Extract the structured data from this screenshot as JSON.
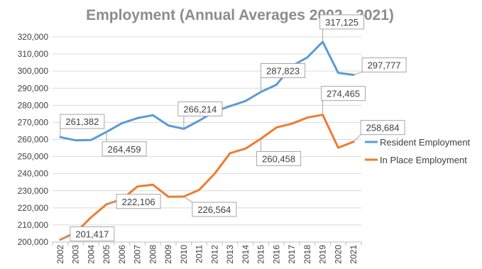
{
  "chart_data": {
    "type": "line",
    "title": "Employment (Annual Averages 2002 - 2021)",
    "x": [
      "2002",
      "2003",
      "2004",
      "2005",
      "2006",
      "2007",
      "2008",
      "2009",
      "2010",
      "2011",
      "2012",
      "2013",
      "2014",
      "2015",
      "2016",
      "2017",
      "2018",
      "2019",
      "2020",
      "2021"
    ],
    "ylim": [
      200000,
      320000
    ],
    "yticks": [
      200000,
      210000,
      220000,
      230000,
      240000,
      250000,
      260000,
      270000,
      280000,
      290000,
      300000,
      310000,
      320000
    ],
    "ytick_labels": [
      "200,000",
      "210,000",
      "220,000",
      "230,000",
      "240,000",
      "250,000",
      "260,000",
      "270,000",
      "280,000",
      "290,000",
      "300,000",
      "310,000",
      "320,000"
    ],
    "grid": true,
    "legend_position": "right",
    "series": [
      {
        "name": "Resident Employment",
        "color": "#5b9bd5",
        "values": [
          261382,
          259500,
          259700,
          264459,
          269500,
          272500,
          274200,
          268200,
          266214,
          271000,
          276300,
          279500,
          282500,
          287823,
          292000,
          303000,
          308000,
          317125,
          299000,
          297777
        ],
        "labels": [
          {
            "index": 0,
            "text": "261,382"
          },
          {
            "index": 3,
            "text": "264,459"
          },
          {
            "index": 8,
            "text": "266,214"
          },
          {
            "index": 13,
            "text": "287,823"
          },
          {
            "index": 17,
            "text": "317,125"
          },
          {
            "index": 19,
            "text": "297,777"
          }
        ]
      },
      {
        "name": "In Place Employment",
        "color": "#ed7d31",
        "values": [
          201417,
          205500,
          214500,
          222106,
          225000,
          232500,
          233500,
          226500,
          226564,
          230500,
          240000,
          252000,
          254700,
          260458,
          267000,
          269200,
          272800,
          274465,
          255200,
          258684
        ],
        "labels": [
          {
            "index": 0,
            "text": "201,417"
          },
          {
            "index": 3,
            "text": "222,106"
          },
          {
            "index": 8,
            "text": "226,564"
          },
          {
            "index": 13,
            "text": "260,458"
          },
          {
            "index": 17,
            "text": "274,465"
          },
          {
            "index": 19,
            "text": "258,684"
          }
        ]
      }
    ]
  }
}
